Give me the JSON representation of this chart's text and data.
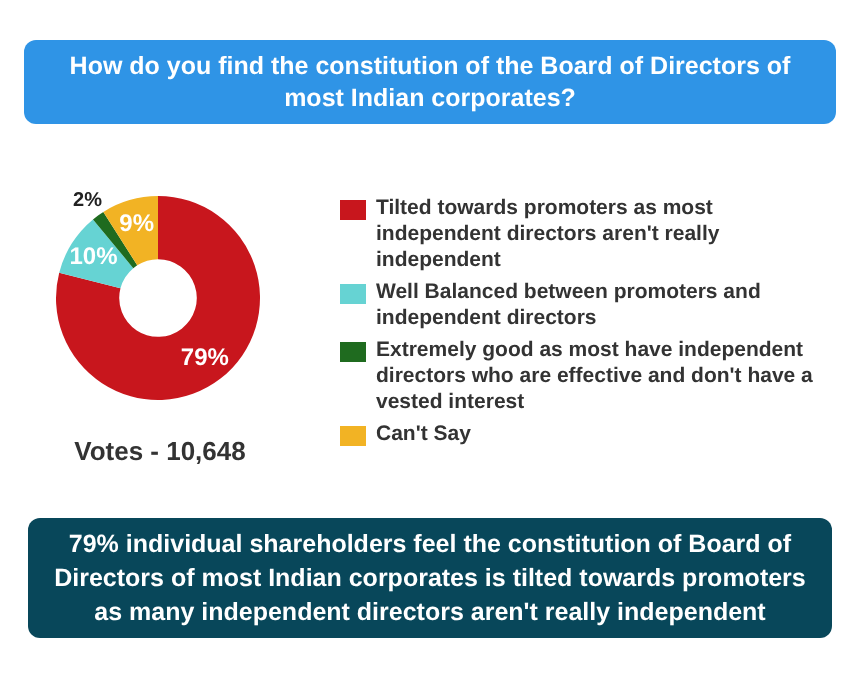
{
  "chart_data": {
    "type": "donut",
    "title": "How do you find the constitution of the Board of Directors of most Indian corporates?",
    "categories": [
      "Tilted towards promoters as most independent directors aren't really independent",
      "Well Balanced between promoters and independent directors",
      "Extremely good as most have independent directors who are effective and don't have a vested interest",
      "Can't Say"
    ],
    "values": [
      79,
      10,
      2,
      9
    ],
    "colors": [
      "#c8161d",
      "#66d3d3",
      "#1f6b1f",
      "#f2b324"
    ],
    "value_labels": [
      "79%",
      "10%",
      "2%",
      "9%"
    ],
    "legend": "right",
    "annotations": [
      "Votes - 10,648",
      "79% individual shareholders feel the constitution of Board of Directors of most Indian corporates is tilted towards promoters as many independent directors aren't really independent"
    ]
  }
}
